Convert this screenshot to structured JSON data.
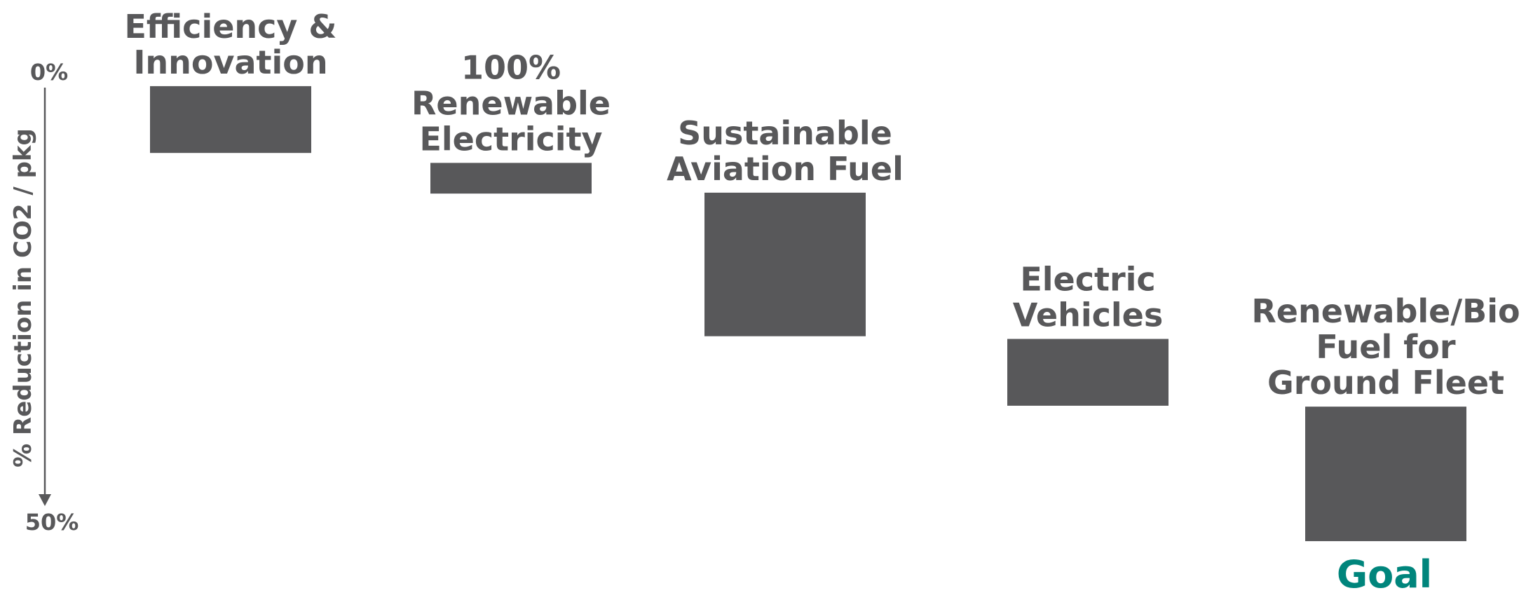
{
  "chart_data": {
    "type": "bar",
    "subtype": "waterfall",
    "title": "",
    "ylabel": "% Reduction in CO2 / pkg",
    "y_axis": {
      "top_tick": "0%",
      "bottom_tick": "50%",
      "range": [
        0,
        50
      ],
      "direction": "downward",
      "grid": false
    },
    "categories": [
      {
        "label_lines": [
          "Efficiency &",
          "Innovation"
        ],
        "start": 1.7,
        "end": 9.1
      },
      {
        "label_lines": [
          "100%",
          "Renewable",
          "Electricity"
        ],
        "start": 10.2,
        "end": 13.6
      },
      {
        "label_lines": [
          "Sustainable",
          "Aviation Fuel"
        ],
        "start": 13.5,
        "end": 29.4
      },
      {
        "label_lines": [
          "Electric",
          "Vehicles"
        ],
        "start": 29.7,
        "end": 37.1
      },
      {
        "label_lines": [
          "Renewable/Bio",
          "Fuel for",
          "Ground Fleet"
        ],
        "start": 37.2,
        "end": 52.1
      }
    ],
    "goal_label": "Goal",
    "colors": {
      "bar": "#58585a",
      "text": "#58585a",
      "goal": "#00857c",
      "axis": "#58585a"
    }
  }
}
